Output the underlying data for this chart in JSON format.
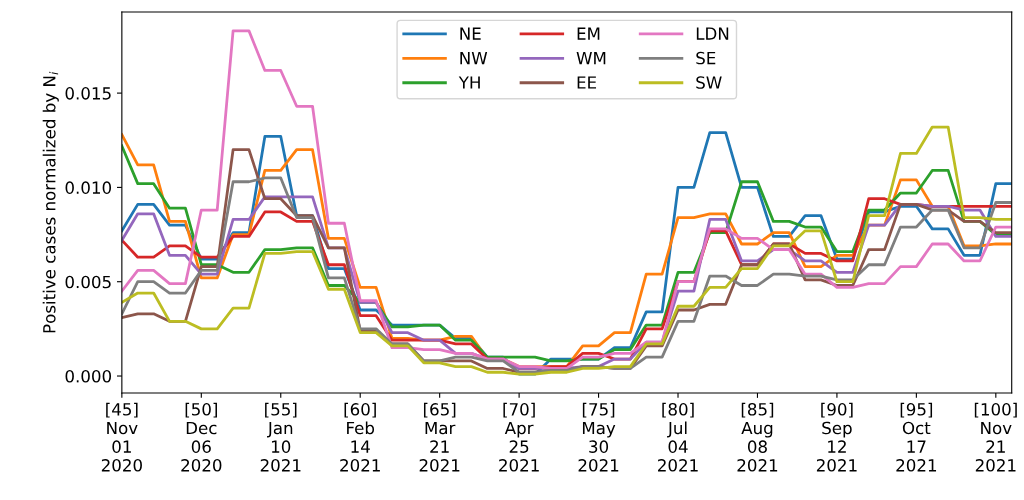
{
  "chart_data": {
    "type": "line",
    "ylabel": "Positive cases normalized by N$_{i}$",
    "categories": [
      "[45]\nNov\n01\n2020",
      null,
      null,
      null,
      null,
      "[50]\nDec\n06\n2020",
      null,
      null,
      null,
      null,
      "[55]\nJan\n10\n2021",
      null,
      null,
      null,
      null,
      "[60]\nFeb\n14\n2021",
      null,
      null,
      null,
      null,
      "[65]\nMar\n21\n2021",
      null,
      null,
      null,
      null,
      "[70]\nApr\n25\n2021",
      null,
      null,
      null,
      null,
      "[75]\nMay\n30\n2021",
      null,
      null,
      null,
      null,
      "[80]\nJul\n04\n2021",
      null,
      null,
      null,
      null,
      "[85]\nAug\n08\n2021",
      null,
      null,
      null,
      null,
      "[90]\nSep\n12\n2021",
      null,
      null,
      null,
      null,
      "[95]\nOct\n17\n2021",
      null,
      null,
      null,
      null,
      "[100]\nNov\n21\n2021",
      null
    ],
    "ylim": [
      -0.0009,
      0.0193
    ],
    "yticks": [
      {
        "value": 0,
        "label": "0.000"
      },
      {
        "value": 0.005,
        "label": "0.005"
      },
      {
        "value": 0.01,
        "label": "0.010"
      },
      {
        "value": 0.015,
        "label": "0.015"
      }
    ],
    "grid": false,
    "legend": "top",
    "marker": "none",
    "line_style": "solid",
    "series": [
      {
        "name": "NE",
        "color": "#1f77b4",
        "values": [
          0.0077,
          0.0091,
          0.0091,
          0.008,
          0.008,
          0.0062,
          0.0062,
          0.0076,
          0.0076,
          0.0127,
          0.0127,
          0.0085,
          0.0085,
          0.0057,
          0.0057,
          0.0035,
          0.0035,
          0.0027,
          0.0027,
          0.0027,
          0.0027,
          0.002,
          0.002,
          0.001,
          0.001,
          0.0001,
          0.0001,
          0.0009,
          0.0009,
          0.0009,
          0.0009,
          0.0015,
          0.0015,
          0.0034,
          0.0034,
          0.01,
          0.01,
          0.0129,
          0.0129,
          0.01,
          0.01,
          0.0074,
          0.0074,
          0.0085,
          0.0085,
          0.0062,
          0.0062,
          0.0087,
          0.0087,
          0.009,
          0.009,
          0.0078,
          0.0078,
          0.0064,
          0.0064,
          0.0102,
          0.0102
        ]
      },
      {
        "name": "NW",
        "color": "#ff7f0e",
        "values": [
          0.0128,
          0.0112,
          0.0112,
          0.0082,
          0.0082,
          0.0052,
          0.0052,
          0.0075,
          0.0075,
          0.0109,
          0.0109,
          0.012,
          0.012,
          0.0073,
          0.0073,
          0.0047,
          0.0047,
          0.002,
          0.002,
          0.0019,
          0.0019,
          0.0021,
          0.0021,
          0.0009,
          0.0009,
          0.0005,
          0.0005,
          0.0005,
          0.0005,
          0.0016,
          0.0016,
          0.0023,
          0.0023,
          0.0054,
          0.0054,
          0.0084,
          0.0084,
          0.0086,
          0.0086,
          0.007,
          0.007,
          0.0076,
          0.0076,
          0.0058,
          0.0058,
          0.0064,
          0.0064,
          0.008,
          0.008,
          0.0104,
          0.0104,
          0.009,
          0.009,
          0.0069,
          0.0069,
          0.007,
          0.007
        ]
      },
      {
        "name": "YH",
        "color": "#2ca02c",
        "values": [
          0.0122,
          0.0102,
          0.0102,
          0.0089,
          0.0089,
          0.0059,
          0.0059,
          0.0055,
          0.0055,
          0.0067,
          0.0067,
          0.0068,
          0.0068,
          0.0048,
          0.0048,
          0.0039,
          0.0039,
          0.0026,
          0.0026,
          0.0027,
          0.0027,
          0.0019,
          0.0019,
          0.001,
          0.001,
          0.001,
          0.001,
          0.0008,
          0.0008,
          0.0009,
          0.0009,
          0.0014,
          0.0014,
          0.0027,
          0.0027,
          0.0055,
          0.0055,
          0.0076,
          0.0076,
          0.0103,
          0.0103,
          0.0082,
          0.0082,
          0.0079,
          0.0079,
          0.0066,
          0.0066,
          0.0088,
          0.0088,
          0.0097,
          0.0097,
          0.0109,
          0.0109,
          0.0082,
          0.0082,
          0.0075,
          0.0075
        ]
      },
      {
        "name": "EM",
        "color": "#d62728",
        "values": [
          0.0072,
          0.0063,
          0.0063,
          0.0069,
          0.0069,
          0.0063,
          0.0063,
          0.0074,
          0.0074,
          0.0087,
          0.0087,
          0.0082,
          0.0082,
          0.0059,
          0.0059,
          0.0032,
          0.0032,
          0.0019,
          0.0019,
          0.0019,
          0.0019,
          0.0017,
          0.0017,
          0.0009,
          0.0009,
          0.0004,
          0.0004,
          0.0005,
          0.0005,
          0.0012,
          0.0012,
          0.0009,
          0.0009,
          0.0025,
          0.0025,
          0.005,
          0.005,
          0.0077,
          0.0077,
          0.0059,
          0.0059,
          0.007,
          0.007,
          0.0065,
          0.0065,
          0.0061,
          0.0061,
          0.0094,
          0.0094,
          0.0091,
          0.0091,
          0.009,
          0.009,
          0.009,
          0.009,
          0.009,
          0.009
        ]
      },
      {
        "name": "WM",
        "color": "#9467bd",
        "values": [
          0.0072,
          0.0086,
          0.0086,
          0.0064,
          0.0064,
          0.0054,
          0.0054,
          0.0083,
          0.0083,
          0.0095,
          0.0095,
          0.0095,
          0.0095,
          0.0068,
          0.0068,
          0.0039,
          0.0039,
          0.0023,
          0.0023,
          0.0019,
          0.0019,
          0.0012,
          0.0012,
          0.0009,
          0.0009,
          0.0004,
          0.0004,
          0.0004,
          0.0004,
          0.0005,
          0.0005,
          0.0009,
          0.0009,
          0.0018,
          0.0018,
          0.0045,
          0.0045,
          0.0083,
          0.0083,
          0.0061,
          0.0061,
          0.0067,
          0.0067,
          0.0061,
          0.0061,
          0.0055,
          0.0055,
          0.008,
          0.008,
          0.0091,
          0.0091,
          0.009,
          0.009,
          0.0088,
          0.0088,
          0.0074,
          0.0074
        ]
      },
      {
        "name": "EE",
        "color": "#8c564b",
        "values": [
          0.0031,
          0.0033,
          0.0033,
          0.0029,
          0.0029,
          0.0058,
          0.0058,
          0.012,
          0.012,
          0.0094,
          0.0094,
          0.0085,
          0.0085,
          0.0068,
          0.0068,
          0.0024,
          0.0024,
          0.0017,
          0.0017,
          0.0008,
          0.0008,
          0.0008,
          0.0008,
          0.0004,
          0.0004,
          0.0002,
          0.0002,
          0.0003,
          0.0003,
          0.0005,
          0.0005,
          0.0004,
          0.0004,
          0.0016,
          0.0016,
          0.0035,
          0.0035,
          0.0038,
          0.0038,
          0.0059,
          0.0059,
          0.007,
          0.007,
          0.0051,
          0.0051,
          0.0048,
          0.0048,
          0.0067,
          0.0067,
          0.0091,
          0.0091,
          0.0088,
          0.0088,
          0.0082,
          0.0082,
          0.0076,
          0.0076
        ]
      },
      {
        "name": "LDN",
        "color": "#e377c2",
        "values": [
          0.0045,
          0.0056,
          0.0056,
          0.0049,
          0.0049,
          0.0088,
          0.0088,
          0.0183,
          0.0183,
          0.0162,
          0.0162,
          0.0143,
          0.0143,
          0.0081,
          0.0081,
          0.004,
          0.004,
          0.0015,
          0.0015,
          0.0014,
          0.0014,
          0.0012,
          0.0012,
          0.0009,
          0.0009,
          0.0005,
          0.0005,
          0.0004,
          0.0004,
          0.001,
          0.001,
          0.0012,
          0.0012,
          0.0018,
          0.0018,
          0.005,
          0.005,
          0.0078,
          0.0078,
          0.0073,
          0.0073,
          0.0067,
          0.0067,
          0.0054,
          0.0054,
          0.0047,
          0.0047,
          0.0049,
          0.0049,
          0.0058,
          0.0058,
          0.007,
          0.007,
          0.0061,
          0.0061,
          0.0079,
          0.0079
        ]
      },
      {
        "name": "SE",
        "color": "#7f7f7f",
        "values": [
          0.0033,
          0.005,
          0.005,
          0.0044,
          0.0044,
          0.0056,
          0.0056,
          0.0103,
          0.0103,
          0.0105,
          0.0105,
          0.0084,
          0.0084,
          0.0052,
          0.0052,
          0.0025,
          0.0025,
          0.0017,
          0.0017,
          0.0008,
          0.0008,
          0.001,
          0.001,
          0.0008,
          0.0008,
          0.0002,
          0.0002,
          0.0003,
          0.0003,
          0.0005,
          0.0005,
          0.0004,
          0.0004,
          0.001,
          0.001,
          0.0029,
          0.0029,
          0.0053,
          0.0053,
          0.0048,
          0.0048,
          0.0054,
          0.0054,
          0.0053,
          0.0053,
          0.0051,
          0.0051,
          0.0059,
          0.0059,
          0.0079,
          0.0079,
          0.0088,
          0.0088,
          0.0068,
          0.0068,
          0.0092,
          0.0092
        ]
      },
      {
        "name": "SW",
        "color": "#bcbd22",
        "values": [
          0.0039,
          0.0044,
          0.0044,
          0.0029,
          0.0029,
          0.0025,
          0.0025,
          0.0036,
          0.0036,
          0.0065,
          0.0065,
          0.0066,
          0.0066,
          0.0046,
          0.0046,
          0.0023,
          0.0023,
          0.0016,
          0.0016,
          0.0007,
          0.0007,
          0.0005,
          0.0005,
          0.0002,
          0.0002,
          0.0001,
          0.0001,
          0.0002,
          0.0002,
          0.0004,
          0.0004,
          0.0005,
          0.0005,
          0.0017,
          0.0017,
          0.0037,
          0.0037,
          0.0047,
          0.0047,
          0.0057,
          0.0057,
          0.0069,
          0.0069,
          0.0077,
          0.0077,
          0.005,
          0.005,
          0.0085,
          0.0085,
          0.0118,
          0.0118,
          0.0132,
          0.0132,
          0.0084,
          0.0084,
          0.0083,
          0.0083
        ]
      }
    ]
  }
}
